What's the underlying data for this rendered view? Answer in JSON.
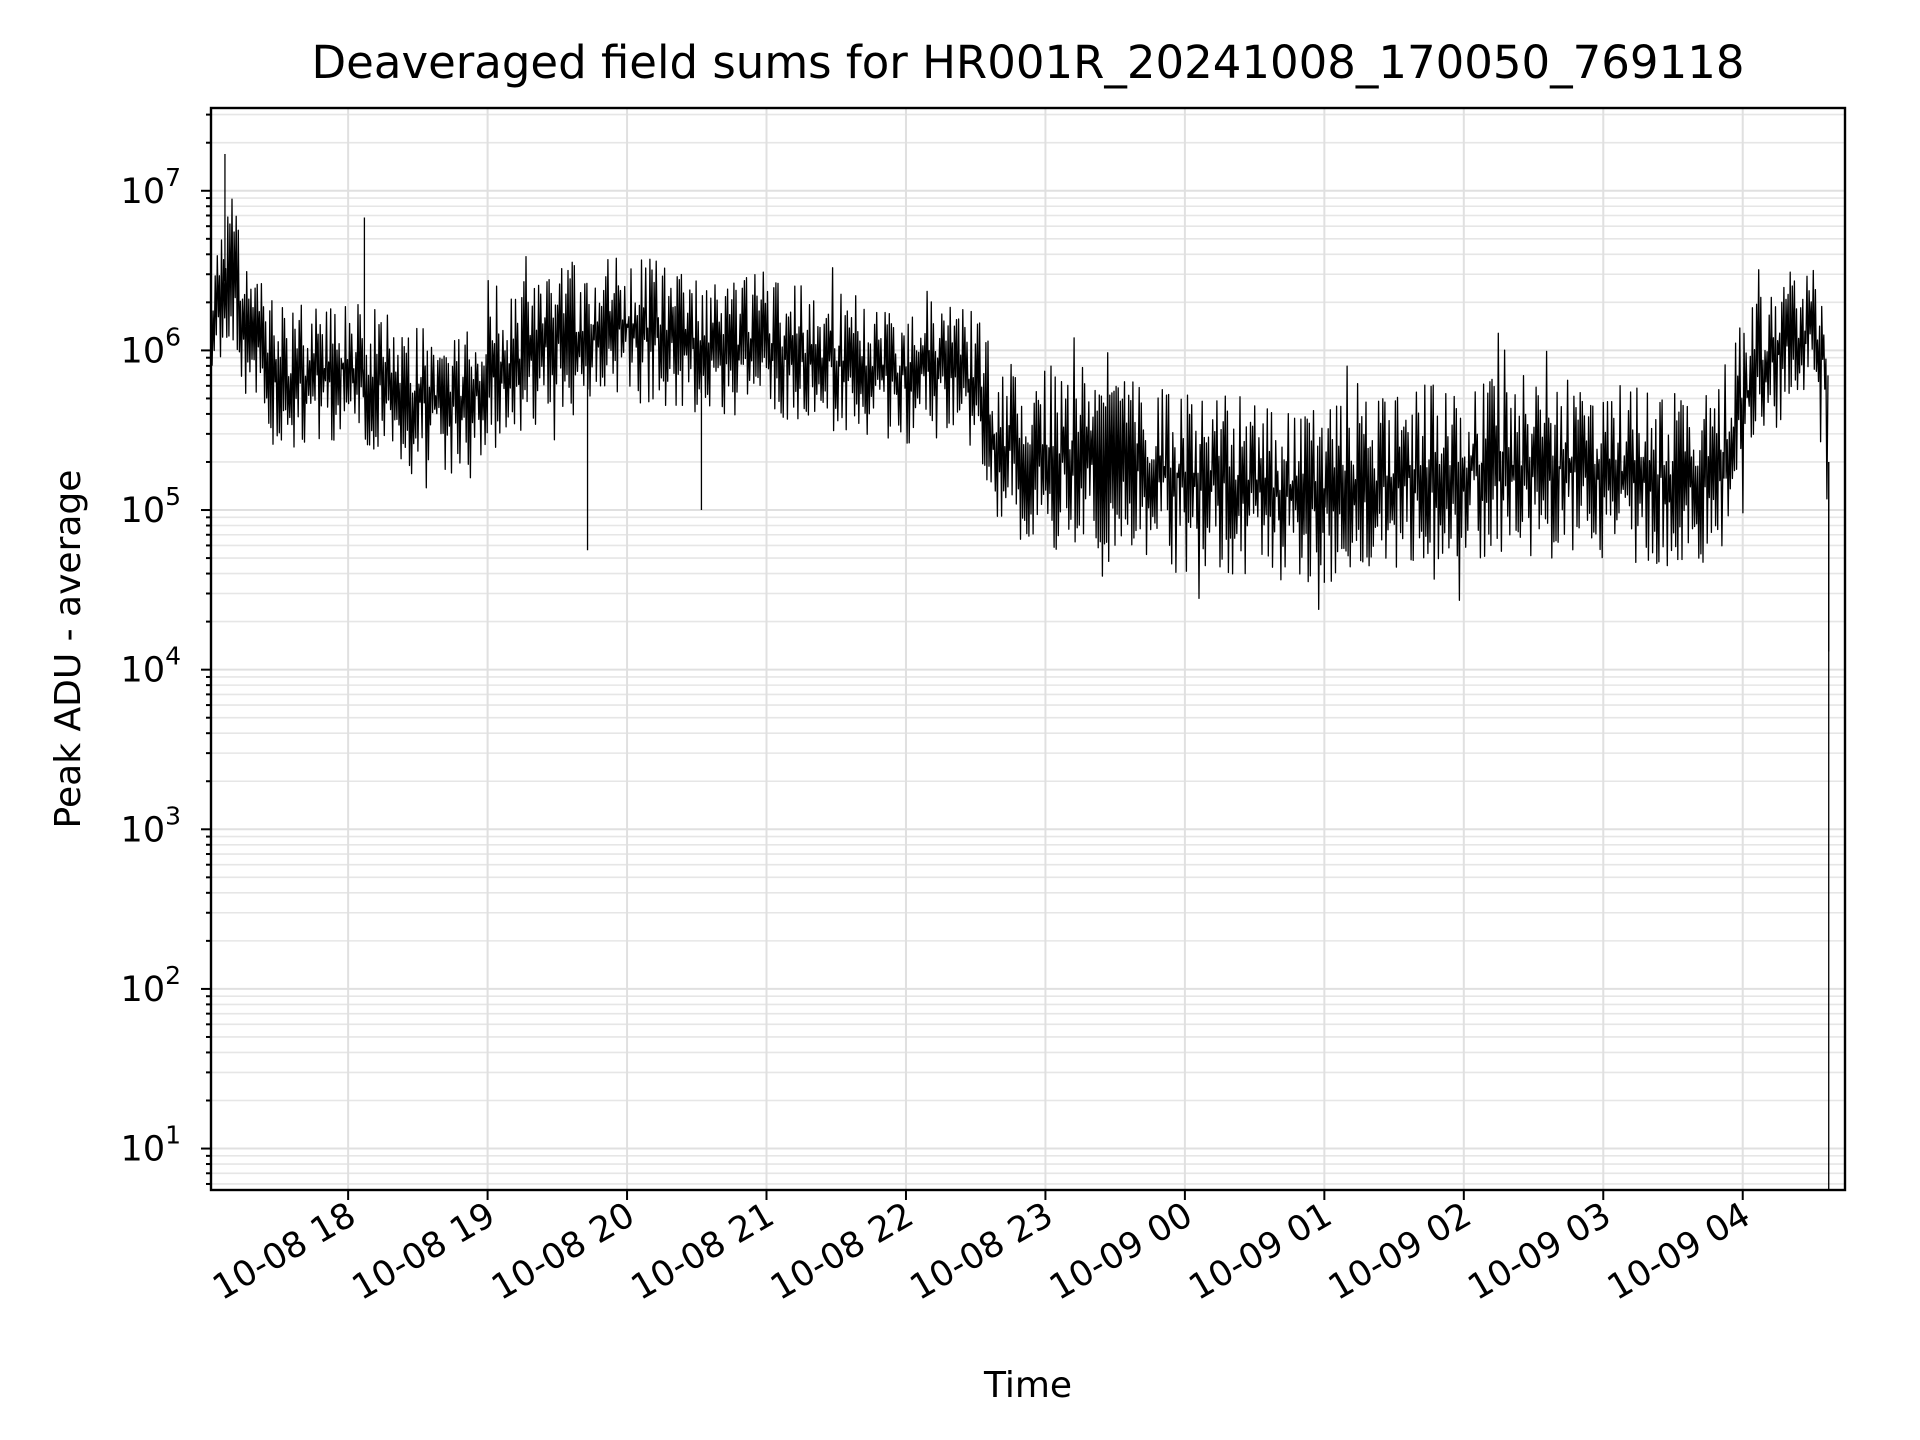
{
  "chart_data": {
    "type": "line",
    "title": "Deaveraged field sums for HR001R_20241008_170050_769118",
    "xlabel": "Time",
    "ylabel": "Peak ADU - average",
    "yscale": "log",
    "ylim": [
      5.5,
      33000000
    ],
    "xlim": [
      "2024-10-08 17:01",
      "2024-10-09 04:44"
    ],
    "grid": true,
    "series_color": "#000000",
    "x_ticks": [
      {
        "time": "2024-10-08 18:00",
        "label": "10-08 18"
      },
      {
        "time": "2024-10-08 19:00",
        "label": "10-08 19"
      },
      {
        "time": "2024-10-08 20:00",
        "label": "10-08 20"
      },
      {
        "time": "2024-10-08 21:00",
        "label": "10-08 21"
      },
      {
        "time": "2024-10-08 22:00",
        "label": "10-08 22"
      },
      {
        "time": "2024-10-08 23:00",
        "label": "10-08 23"
      },
      {
        "time": "2024-10-09 00:00",
        "label": "10-09 00"
      },
      {
        "time": "2024-10-09 01:00",
        "label": "10-09 01"
      },
      {
        "time": "2024-10-09 02:00",
        "label": "10-09 02"
      },
      {
        "time": "2024-10-09 03:00",
        "label": "10-09 03"
      },
      {
        "time": "2024-10-09 04:00",
        "label": "10-09 04"
      }
    ],
    "y_ticks": [
      {
        "value": 10,
        "base": "10",
        "exp": "1"
      },
      {
        "value": 100,
        "base": "10",
        "exp": "2"
      },
      {
        "value": 1000,
        "base": "10",
        "exp": "3"
      },
      {
        "value": 10000,
        "base": "10",
        "exp": "4"
      },
      {
        "value": 100000,
        "base": "10",
        "exp": "5"
      },
      {
        "value": 1000000,
        "base": "10",
        "exp": "6"
      },
      {
        "value": 10000000,
        "base": "10",
        "exp": "7"
      }
    ],
    "series": [
      {
        "values": [
          {
            "time": "2024-10-08 17:01",
            "median": 1200000
          },
          {
            "time": "2024-10-08 17:06",
            "median": 2500000
          },
          {
            "time": "2024-10-08 17:10",
            "median": 3500000
          },
          {
            "time": "2024-10-08 17:15",
            "median": 1500000
          },
          {
            "time": "2024-10-08 17:25",
            "median": 900000
          },
          {
            "time": "2024-10-08 17:35",
            "median": 650000
          },
          {
            "time": "2024-10-08 17:45",
            "median": 700000
          },
          {
            "time": "2024-10-08 18:00",
            "median": 800000
          },
          {
            "time": "2024-10-08 18:15",
            "median": 600000
          },
          {
            "time": "2024-10-08 18:30",
            "median": 500000
          },
          {
            "time": "2024-10-08 18:45",
            "median": 450000
          },
          {
            "time": "2024-10-08 19:00",
            "median": 650000
          },
          {
            "time": "2024-10-08 19:20",
            "median": 1000000
          },
          {
            "time": "2024-10-08 19:40",
            "median": 1300000
          },
          {
            "time": "2024-10-08 20:00",
            "median": 1400000
          },
          {
            "time": "2024-10-08 20:20",
            "median": 1200000
          },
          {
            "time": "2024-10-08 20:40",
            "median": 1000000
          },
          {
            "time": "2024-10-08 21:00",
            "median": 1100000
          },
          {
            "time": "2024-10-08 21:20",
            "median": 900000
          },
          {
            "time": "2024-10-08 21:40",
            "median": 800000
          },
          {
            "time": "2024-10-08 22:00",
            "median": 700000
          },
          {
            "time": "2024-10-08 22:20",
            "median": 800000
          },
          {
            "time": "2024-10-08 22:30",
            "median": 600000
          },
          {
            "time": "2024-10-08 22:40",
            "median": 250000
          },
          {
            "time": "2024-10-08 23:00",
            "median": 230000
          },
          {
            "time": "2024-10-08 23:30",
            "median": 200000
          },
          {
            "time": "2024-10-09 00:00",
            "median": 160000
          },
          {
            "time": "2024-10-09 00:30",
            "median": 140000
          },
          {
            "time": "2024-10-09 01:00",
            "median": 120000
          },
          {
            "time": "2024-10-09 01:30",
            "median": 160000
          },
          {
            "time": "2024-10-09 02:00",
            "median": 180000
          },
          {
            "time": "2024-10-09 02:30",
            "median": 190000
          },
          {
            "time": "2024-10-09 03:00",
            "median": 170000
          },
          {
            "time": "2024-10-09 03:30",
            "median": 160000
          },
          {
            "time": "2024-10-09 03:50",
            "median": 180000
          },
          {
            "time": "2024-10-09 04:05",
            "median": 700000
          },
          {
            "time": "2024-10-09 04:20",
            "median": 1100000
          },
          {
            "time": "2024-10-09 04:30",
            "median": 1300000
          },
          {
            "time": "2024-10-09 04:35",
            "median": 900000
          },
          {
            "time": "2024-10-09 04:37",
            "median": 200000
          }
        ],
        "noticeable_points": [
          {
            "time": "2024-10-08 17:07",
            "value": 17000000
          },
          {
            "time": "2024-10-08 18:07",
            "value": 6800000
          },
          {
            "time": "2024-10-08 19:43",
            "value": 56000
          },
          {
            "time": "2024-10-08 20:32",
            "value": 100000
          },
          {
            "time": "2024-10-09 01:00",
            "value": 35000
          },
          {
            "time": "2024-10-09 04:37",
            "value": 13000
          },
          {
            "time": "2024-10-09 04:37",
            "value": 5.5
          }
        ]
      }
    ]
  }
}
